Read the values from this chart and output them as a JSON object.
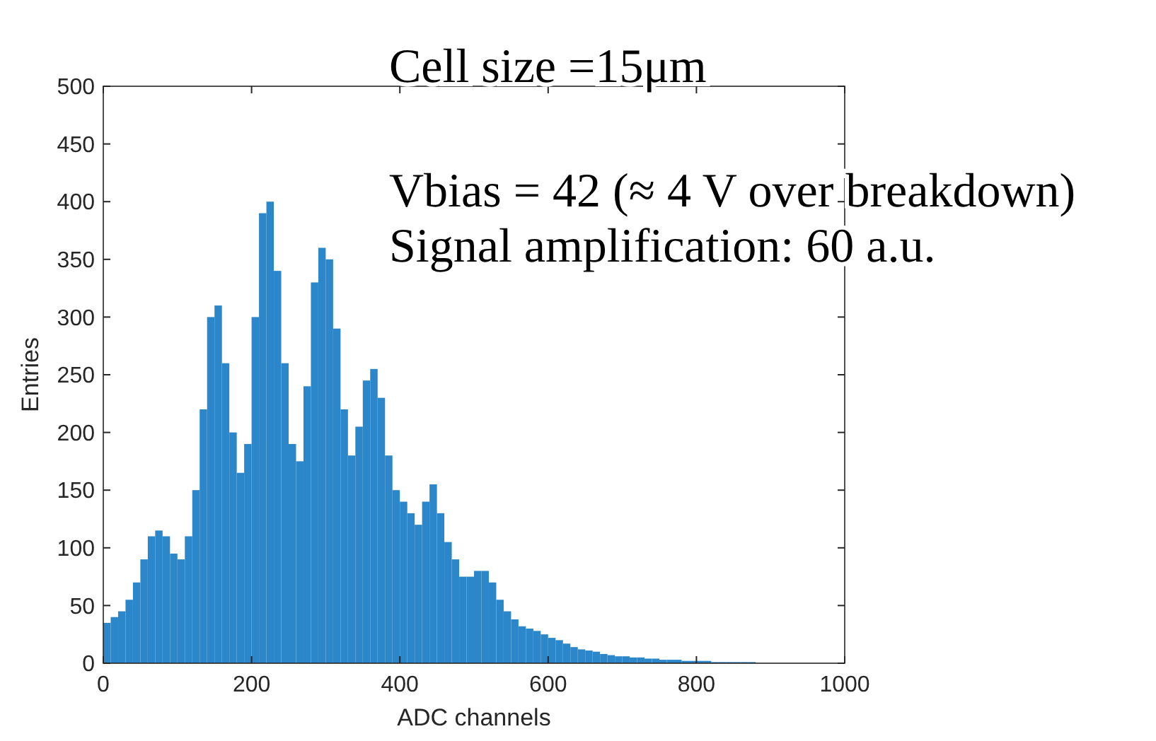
{
  "chart_data": {
    "type": "histogram",
    "xlabel": "ADC channels",
    "ylabel": "Entries",
    "color": "#2b87c9",
    "bins": [
      0,
      10,
      20,
      30,
      40,
      50,
      60,
      70,
      80,
      90,
      100,
      110,
      120,
      130,
      140,
      150,
      160,
      170,
      180,
      190,
      200,
      210,
      220,
      230,
      240,
      250,
      260,
      270,
      280,
      290,
      300,
      310,
      320,
      330,
      340,
      350,
      360,
      370,
      380,
      390,
      400,
      410,
      420,
      430,
      440,
      450,
      460,
      470,
      480,
      490,
      500,
      510,
      520,
      530,
      540,
      550,
      560,
      570,
      580,
      590,
      600,
      610,
      620,
      630,
      640,
      650,
      660,
      670,
      680,
      690,
      700,
      710,
      720,
      730,
      740,
      750,
      760,
      770,
      780,
      790,
      800,
      810,
      820,
      830,
      840,
      850,
      860,
      870,
      880,
      890,
      900,
      910,
      920,
      930,
      940,
      950,
      960,
      970,
      980,
      990,
      1000
    ],
    "values": [
      35,
      40,
      45,
      55,
      70,
      90,
      110,
      115,
      110,
      95,
      90,
      110,
      150,
      220,
      300,
      310,
      260,
      200,
      165,
      190,
      300,
      390,
      400,
      340,
      260,
      190,
      175,
      240,
      330,
      360,
      350,
      290,
      220,
      180,
      205,
      245,
      255,
      230,
      180,
      150,
      140,
      130,
      120,
      140,
      155,
      130,
      105,
      90,
      75,
      75,
      80,
      80,
      70,
      55,
      45,
      38,
      32,
      30,
      28,
      25,
      22,
      20,
      17,
      14,
      12,
      11,
      10,
      8,
      7,
      6,
      6,
      5,
      5,
      4,
      4,
      3,
      3,
      3,
      2,
      2,
      2,
      2,
      1,
      1,
      1,
      1,
      1,
      1,
      0,
      0,
      0,
      0,
      0,
      0,
      0,
      0,
      0,
      0,
      0,
      0
    ],
    "xlim": [
      0,
      1000
    ],
    "xticks": [
      0,
      200,
      400,
      600,
      800,
      1000
    ],
    "ylim": [
      0,
      500
    ],
    "yticks": [
      0,
      50,
      100,
      150,
      200,
      250,
      300,
      350,
      400,
      450,
      500
    ],
    "grid": false,
    "annotations": [
      "Cell size =15μm",
      "Vbias = 42 (≈ 4 V over breakdown)",
      "Signal amplification: 60 a.u."
    ]
  }
}
